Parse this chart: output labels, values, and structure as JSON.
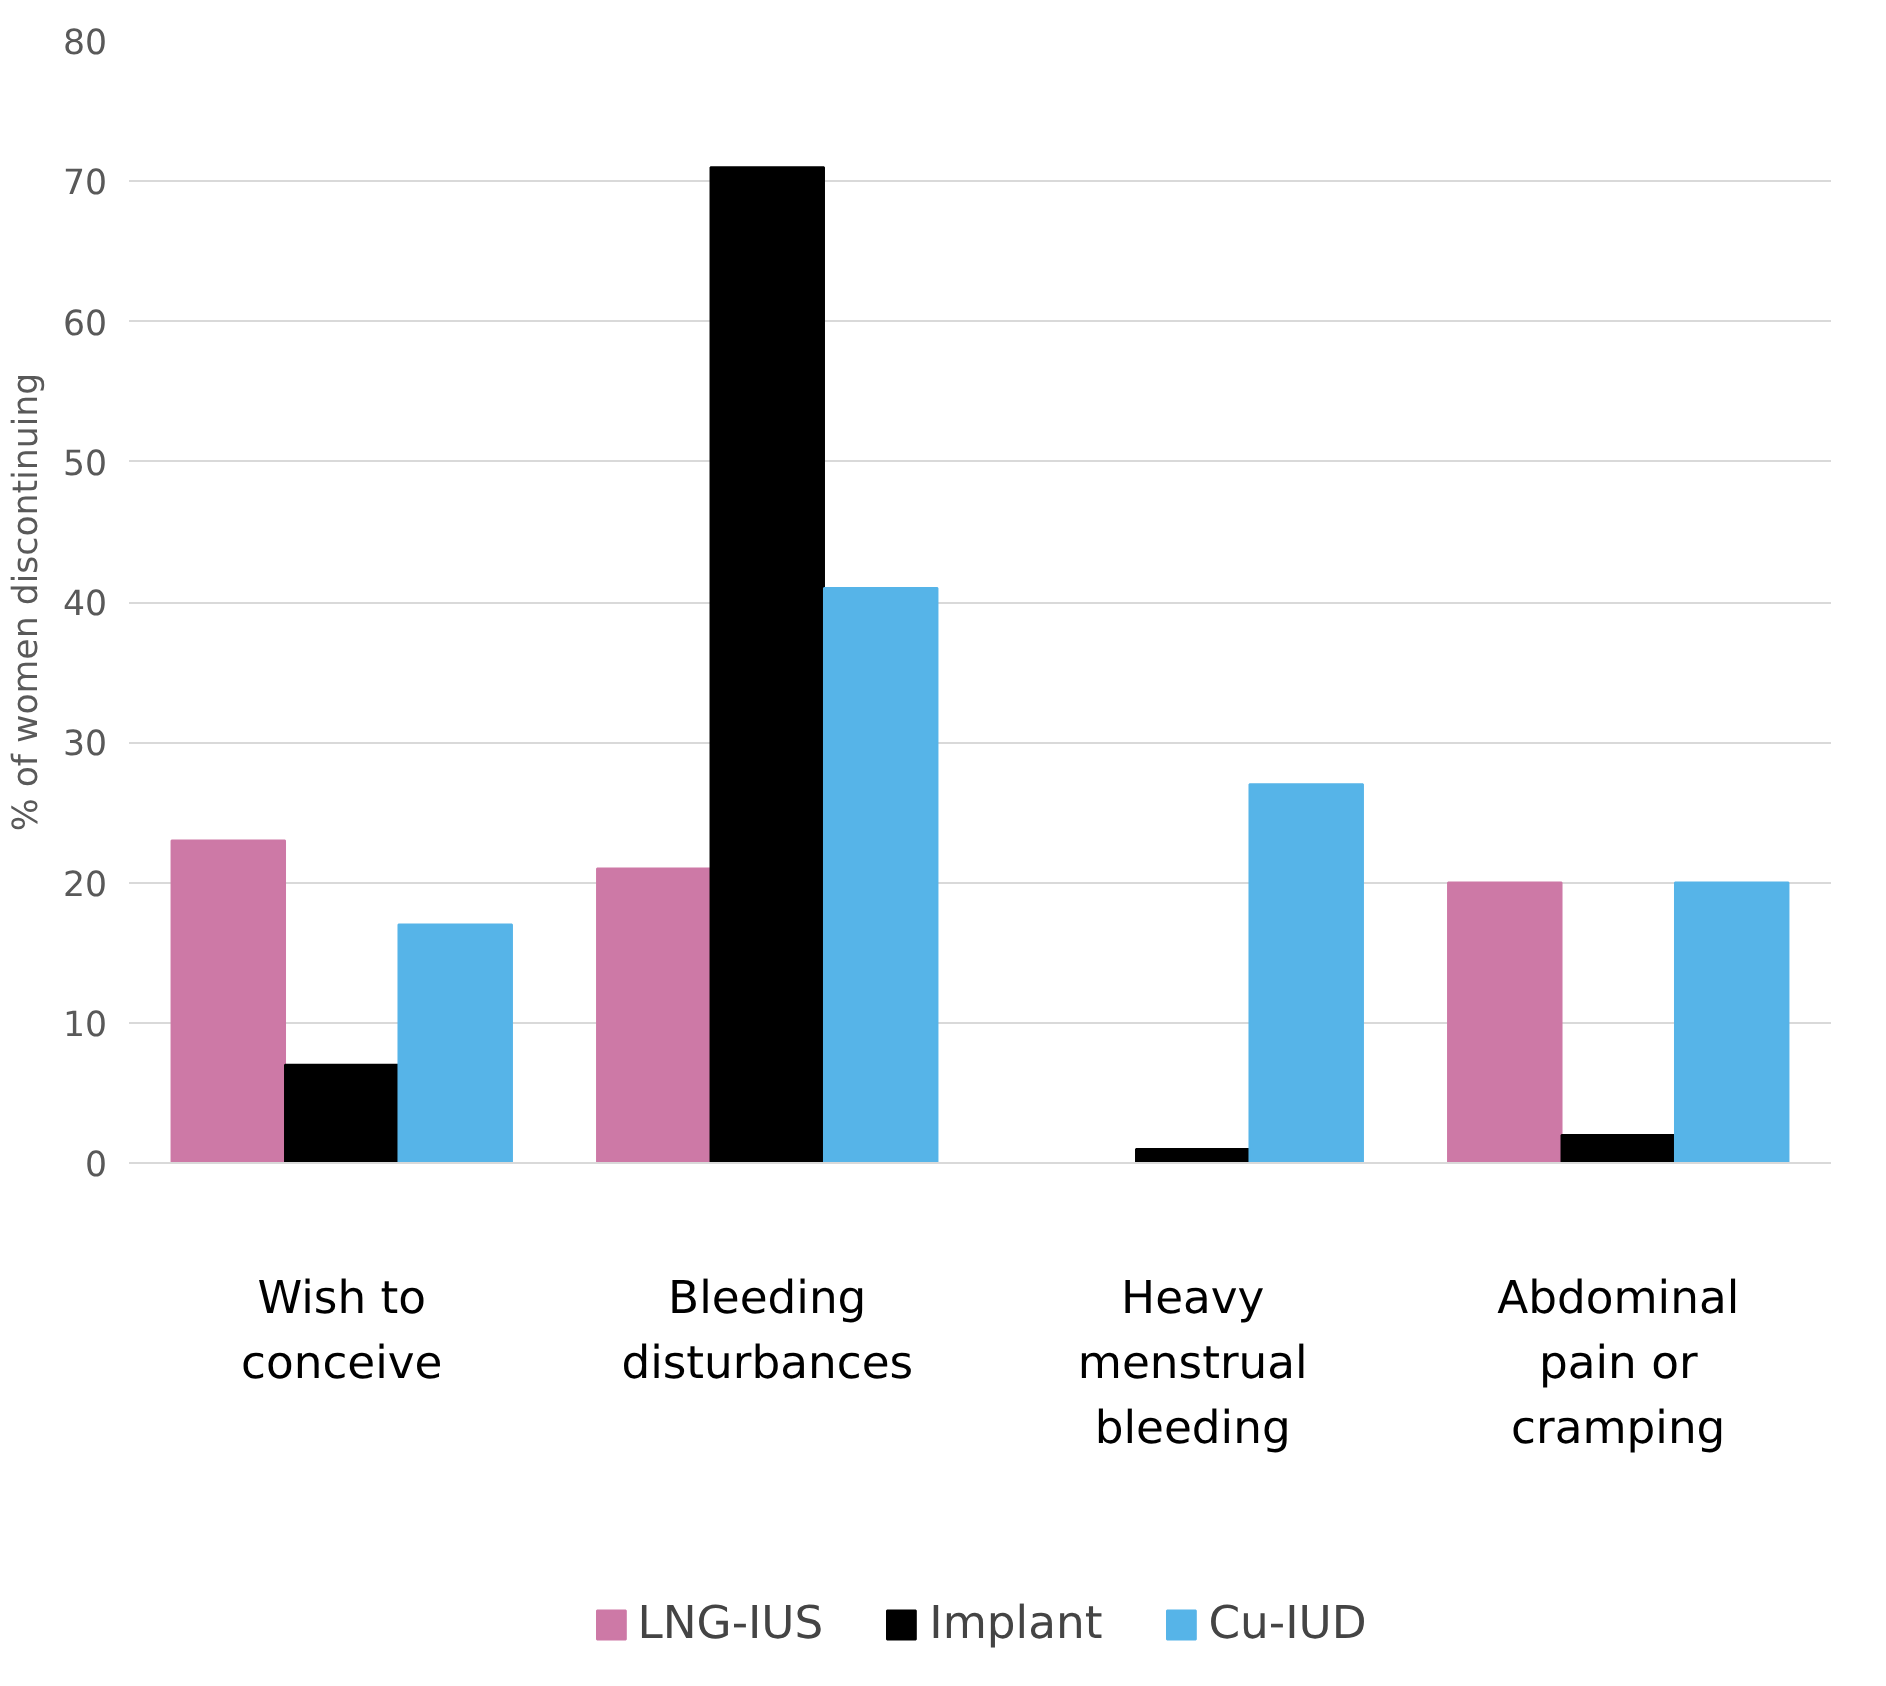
{
  "chart_data": {
    "type": "bar",
    "ylabel": "% of women discontinuing",
    "categories": [
      "Wish to conceive",
      "Bleeding disturbances",
      "Heavy menstrual bleeding",
      "Abdominal pain or cramping"
    ],
    "series": [
      {
        "name": "LNG-IUS",
        "color": "#cd79a6",
        "values": [
          23,
          21,
          0,
          20
        ]
      },
      {
        "name": "Implant",
        "color": "#000000",
        "values": [
          7,
          71,
          1,
          2
        ]
      },
      {
        "name": "Cu-IUD",
        "color": "#56b4e8",
        "values": [
          17,
          41,
          27,
          20
        ]
      }
    ],
    "ylim": [
      0,
      80
    ],
    "yticks": [
      0,
      10,
      20,
      30,
      40,
      50,
      60,
      70,
      80
    ],
    "grid": "y",
    "legend": "bottom"
  }
}
